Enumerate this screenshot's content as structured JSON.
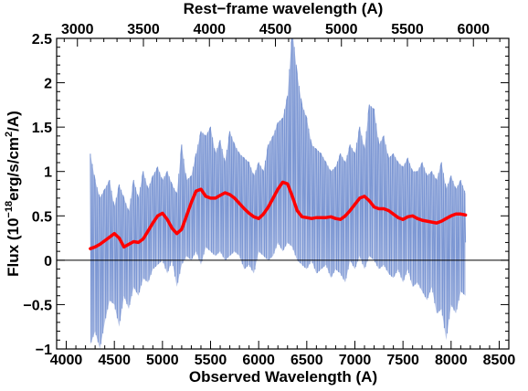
{
  "chart_data": {
    "type": "line",
    "title": "",
    "xlabel": "Observed Wavelength (A)",
    "ylabel_parts": {
      "prefix": "Flux (10",
      "exp": "−18",
      "mid": "erg/s/cm",
      "sq": "2",
      "suffix": "/A)"
    },
    "top_xlabel": "Rest−frame wavelength (A)",
    "xlim": [
      3900,
      8600
    ],
    "ylim": [
      -1.0,
      2.5
    ],
    "x_ticks": [
      4000,
      4500,
      5000,
      5500,
      6000,
      6500,
      7000,
      7500,
      8000,
      8500
    ],
    "x_tick_labels": [
      "4000",
      "4500",
      "5000",
      "5500",
      "6000",
      "6500",
      "7000",
      "7500",
      "8000",
      "8500"
    ],
    "y_ticks": [
      -1.0,
      -0.5,
      0.0,
      0.5,
      1.0,
      1.5,
      2.0,
      2.5
    ],
    "y_tick_labels": [
      "−1",
      "−0.5",
      "0",
      "0.5",
      "1",
      "1.5",
      "2",
      "2.5"
    ],
    "rest_frame_ticks": [
      3000,
      3500,
      4000,
      4500,
      5000,
      5500,
      6000
    ],
    "rest_frame_tick_labels": [
      "3000",
      "3500",
      "4000",
      "4500",
      "5000",
      "5500",
      "6000"
    ],
    "rest_to_observed_factor": 1.372,
    "zero_line": 0,
    "series": [
      {
        "role": "spectrum",
        "color": "#7b96d3",
        "x": [
          4250,
          4300,
          4350,
          4400,
          4450,
          4500,
          4550,
          4600,
          4650,
          4700,
          4750,
          4800,
          4850,
          4900,
          4950,
          5000,
          5050,
          5100,
          5150,
          5200,
          5250,
          5300,
          5350,
          5400,
          5450,
          5500,
          5550,
          5600,
          5650,
          5700,
          5750,
          5800,
          5850,
          5900,
          5950,
          6000,
          6050,
          6100,
          6150,
          6200,
          6250,
          6300,
          6350,
          6400,
          6450,
          6500,
          6550,
          6600,
          6650,
          6700,
          6750,
          6800,
          6850,
          6900,
          6950,
          7000,
          7050,
          7100,
          7150,
          7200,
          7250,
          7300,
          7350,
          7400,
          7450,
          7500,
          7550,
          7600,
          7650,
          7700,
          7750,
          7800,
          7850,
          7900,
          7950,
          8000,
          8050,
          8100,
          8150
        ],
        "y_upper": [
          1.2,
          0.9,
          0.7,
          0.8,
          0.9,
          0.6,
          0.85,
          0.7,
          0.55,
          0.9,
          0.7,
          1.0,
          0.8,
          0.95,
          1.05,
          0.9,
          1.0,
          0.85,
          0.75,
          1.3,
          0.9,
          0.95,
          1.2,
          1.45,
          1.4,
          1.5,
          1.2,
          1.35,
          1.1,
          1.45,
          1.3,
          1.2,
          1.15,
          1.1,
          0.95,
          1.1,
          1.0,
          1.3,
          1.4,
          1.55,
          1.6,
          1.85,
          2.6,
          2.1,
          1.75,
          1.6,
          1.3,
          1.25,
          1.2,
          1.1,
          1.0,
          1.05,
          1.2,
          1.1,
          1.3,
          1.2,
          1.5,
          1.25,
          1.75,
          1.7,
          1.3,
          1.4,
          1.15,
          1.2,
          1.1,
          1.05,
          1.15,
          1.0,
          1.0,
          1.1,
          0.95,
          1.0,
          0.9,
          1.1,
          0.8,
          0.95,
          0.8,
          0.9,
          0.75
        ],
        "y_lower": [
          -0.95,
          -0.8,
          -1.0,
          -0.7,
          -0.45,
          -0.5,
          -0.75,
          -0.4,
          -0.55,
          -0.3,
          -0.4,
          -0.2,
          -0.25,
          -0.1,
          -0.05,
          0.0,
          -0.15,
          0.0,
          -0.3,
          -0.05,
          0.05,
          0.0,
          0.1,
          -0.05,
          0.15,
          0.1,
          0.05,
          0.1,
          0.0,
          0.05,
          0.1,
          0.05,
          -0.1,
          -0.05,
          -0.15,
          0.1,
          0.05,
          0.0,
          0.05,
          0.2,
          0.1,
          0.2,
          0.15,
          0.0,
          -0.05,
          -0.1,
          0.0,
          -0.15,
          -0.1,
          -0.05,
          -0.2,
          -0.1,
          -0.15,
          -0.25,
          0.0,
          -0.1,
          0.05,
          -0.1,
          0.05,
          0.0,
          -0.1,
          -0.05,
          -0.15,
          -0.2,
          -0.1,
          -0.25,
          -0.1,
          -0.3,
          -0.25,
          -0.35,
          -0.45,
          -0.3,
          -0.6,
          -0.55,
          -0.9,
          -0.5,
          -0.6,
          -0.35,
          -0.4
        ],
        "y_typical": [
          0.3,
          0.1,
          -0.15,
          0.2,
          0.3,
          0.05,
          0.25,
          0.1,
          0.0,
          0.3,
          0.15,
          0.4,
          0.3,
          0.45,
          0.5,
          0.5,
          0.4,
          0.35,
          0.2,
          0.6,
          0.45,
          0.5,
          0.65,
          0.75,
          0.8,
          0.8,
          0.65,
          0.7,
          0.6,
          0.75,
          0.7,
          0.65,
          0.55,
          0.5,
          0.4,
          0.55,
          0.5,
          0.6,
          0.7,
          0.85,
          0.8,
          0.95,
          1.4,
          1.0,
          0.8,
          0.7,
          0.55,
          0.5,
          0.5,
          0.45,
          0.4,
          0.45,
          0.5,
          0.4,
          0.6,
          0.5,
          0.75,
          0.55,
          0.85,
          0.8,
          0.55,
          0.6,
          0.45,
          0.45,
          0.4,
          0.35,
          0.45,
          0.35,
          0.35,
          0.4,
          0.3,
          0.35,
          0.2,
          0.35,
          0.1,
          0.3,
          0.15,
          0.3,
          0.2
        ]
      },
      {
        "role": "smoothed-fit",
        "color": "#ff0000",
        "x": [
          4250,
          4300,
          4350,
          4400,
          4450,
          4500,
          4550,
          4600,
          4650,
          4700,
          4750,
          4800,
          4850,
          4900,
          4950,
          5000,
          5050,
          5100,
          5150,
          5200,
          5250,
          5300,
          5350,
          5400,
          5450,
          5500,
          5550,
          5600,
          5650,
          5700,
          5750,
          5800,
          5850,
          5900,
          5950,
          6000,
          6050,
          6100,
          6150,
          6200,
          6250,
          6300,
          6350,
          6400,
          6450,
          6500,
          6550,
          6600,
          6650,
          6700,
          6750,
          6800,
          6850,
          6900,
          6950,
          7000,
          7050,
          7100,
          7150,
          7200,
          7250,
          7300,
          7350,
          7400,
          7450,
          7500,
          7550,
          7600,
          7650,
          7700,
          7750,
          7800,
          7850,
          7900,
          7950,
          8000,
          8050,
          8100,
          8150
        ],
        "y": [
          0.13,
          0.15,
          0.18,
          0.22,
          0.26,
          0.3,
          0.25,
          0.15,
          0.18,
          0.21,
          0.2,
          0.24,
          0.33,
          0.42,
          0.5,
          0.53,
          0.46,
          0.36,
          0.3,
          0.35,
          0.5,
          0.65,
          0.78,
          0.8,
          0.72,
          0.7,
          0.7,
          0.73,
          0.76,
          0.74,
          0.7,
          0.64,
          0.58,
          0.53,
          0.49,
          0.47,
          0.52,
          0.6,
          0.7,
          0.8,
          0.88,
          0.86,
          0.72,
          0.56,
          0.49,
          0.48,
          0.47,
          0.48,
          0.48,
          0.48,
          0.49,
          0.47,
          0.46,
          0.5,
          0.56,
          0.63,
          0.7,
          0.72,
          0.67,
          0.6,
          0.58,
          0.58,
          0.56,
          0.52,
          0.48,
          0.46,
          0.49,
          0.5,
          0.47,
          0.45,
          0.44,
          0.43,
          0.42,
          0.44,
          0.47,
          0.5,
          0.52,
          0.52,
          0.51
        ]
      }
    ]
  }
}
